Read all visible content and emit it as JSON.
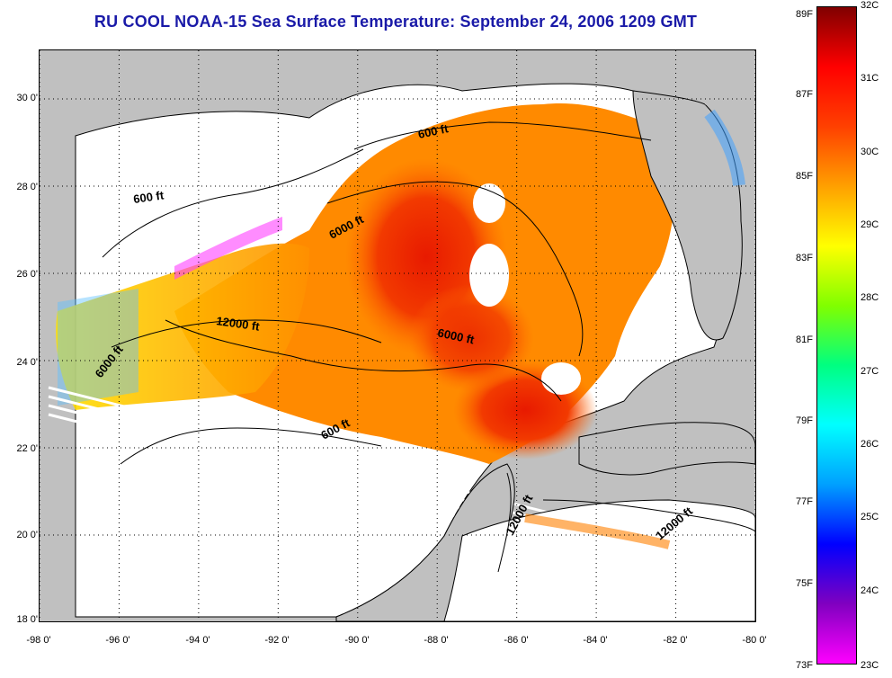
{
  "title": "RU COOL  NOAA-15  Sea Surface Temperature:  September 24, 2006 1209 GMT",
  "lat_labels": [
    "30 0'",
    "28 0'",
    "26 0'",
    "24 0'",
    "22 0'",
    "20 0'",
    "18 0'"
  ],
  "lon_labels": [
    "-98 0'",
    "-96 0'",
    "-94 0'",
    "-92 0'",
    "-90 0'",
    "-88 0'",
    "-86 0'",
    "-84 0'",
    "-82 0'",
    "-80 0'"
  ],
  "contour_labels": {
    "c600_nw": "600 ft",
    "c600_n": "600 ft",
    "c6000_n": "6000 ft",
    "c12000_w": "12000 ft",
    "c6000_c": "6000 ft",
    "c6000_w": "6000 ft",
    "c600_s": "600 ft",
    "c12000_s": "12000 ft",
    "c12000_se": "12000 ft"
  },
  "colorbar": {
    "fahrenheit": [
      "89F",
      "87F",
      "85F",
      "83F",
      "81F",
      "79F",
      "77F",
      "75F",
      "73F"
    ],
    "celsius": [
      "32C",
      "31C",
      "30C",
      "29C",
      "28C",
      "27C",
      "26C",
      "25C",
      "24C",
      "23C"
    ],
    "colors": [
      "#ff00ff",
      "#8000c0",
      "#0000ff",
      "#00a0ff",
      "#00ffff",
      "#00ff80",
      "#80ff00",
      "#ffff00",
      "#ffa000",
      "#ff4000",
      "#ff0000",
      "#800000"
    ]
  },
  "colors": {
    "land": "#c0c0c0",
    "title": "#1a1aa8",
    "cloud_mask": "#ffffff"
  }
}
